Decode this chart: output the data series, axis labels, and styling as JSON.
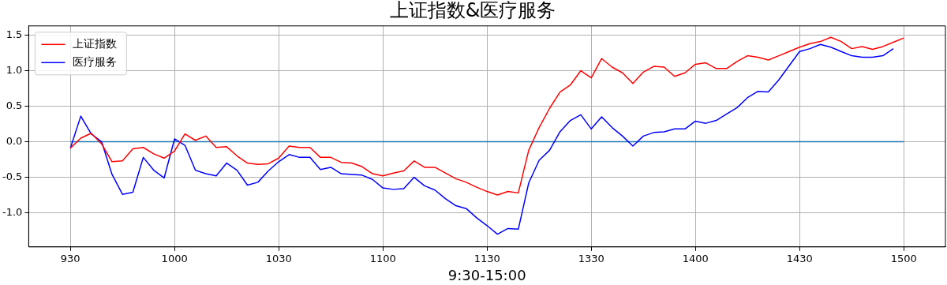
{
  "chart_data": {
    "type": "line",
    "title": "上证指数&医疗服务",
    "xlabel": "9:30-15:00",
    "categories": [
      "930",
      null,
      null,
      null,
      null,
      null,
      null,
      null,
      null,
      null,
      "1000",
      null,
      null,
      null,
      null,
      null,
      null,
      null,
      null,
      null,
      "1030",
      null,
      null,
      null,
      null,
      null,
      null,
      null,
      null,
      null,
      "1100",
      null,
      null,
      null,
      null,
      null,
      null,
      null,
      null,
      null,
      "1130",
      null,
      null,
      null,
      null,
      null,
      null,
      null,
      null,
      null,
      "1330",
      null,
      null,
      null,
      null,
      null,
      null,
      null,
      null,
      null,
      "1400",
      null,
      null,
      null,
      null,
      null,
      null,
      null,
      null,
      null,
      "1430",
      null,
      null,
      null,
      null,
      null,
      null,
      null,
      null,
      null,
      "1500"
    ],
    "ylim": [
      -1.48,
      1.63
    ],
    "yticks": [
      {
        "value": -1,
        "label": "-1.0"
      },
      {
        "value": -0.5,
        "label": "-0.5"
      },
      {
        "value": 0,
        "label": "0.0"
      },
      {
        "value": 0.5,
        "label": "0.5"
      },
      {
        "value": 1,
        "label": "1.0"
      },
      {
        "value": 1.5,
        "label": "1.5"
      }
    ],
    "grid": true,
    "legend": "top left",
    "line_style": "solid",
    "series": [
      {
        "name": "上证指数",
        "color": "#ff0000",
        "values": [
          -0.09,
          0.05,
          0.12,
          -0.03,
          -0.28,
          -0.27,
          -0.1,
          -0.08,
          -0.17,
          -0.23,
          -0.13,
          0.11,
          0.02,
          0.08,
          -0.08,
          -0.07,
          -0.2,
          -0.3,
          -0.32,
          -0.31,
          -0.23,
          -0.06,
          -0.08,
          -0.08,
          -0.22,
          -0.22,
          -0.29,
          -0.3,
          -0.35,
          -0.45,
          -0.48,
          -0.44,
          -0.41,
          -0.27,
          -0.36,
          -0.36,
          -0.44,
          -0.52,
          -0.57,
          -0.64,
          -0.7,
          -0.75,
          -0.7,
          -0.72,
          -0.12,
          0.2,
          0.47,
          0.7,
          0.8,
          1.0,
          0.9,
          1.17,
          1.05,
          0.97,
          0.82,
          0.98,
          1.06,
          1.05,
          0.92,
          0.97,
          1.09,
          1.11,
          1.03,
          1.03,
          1.13,
          1.21,
          1.19,
          1.15,
          1.21,
          1.27,
          1.33,
          1.38,
          1.41,
          1.47,
          1.41,
          1.31,
          1.34,
          1.3,
          1.34,
          1.4,
          1.46
        ]
      },
      {
        "name": "医疗服务",
        "color": "#0000ff",
        "values": [
          -0.09,
          0.36,
          0.11,
          0,
          -0.46,
          -0.74,
          -0.71,
          -0.22,
          -0.4,
          -0.51,
          0.04,
          -0.05,
          -0.4,
          -0.45,
          -0.48,
          -0.3,
          -0.4,
          -0.61,
          -0.57,
          -0.41,
          -0.28,
          -0.18,
          -0.22,
          -0.22,
          -0.39,
          -0.36,
          -0.45,
          -0.46,
          -0.47,
          -0.53,
          -0.65,
          -0.67,
          -0.66,
          -0.5,
          -0.62,
          -0.68,
          -0.8,
          -0.9,
          -0.94,
          -1.07,
          -1.18,
          -1.3,
          -1.22,
          -1.23,
          -0.58,
          -0.26,
          -0.12,
          0.14,
          0.3,
          0.38,
          0.18,
          0.35,
          0.2,
          0.08,
          -0.06,
          0.08,
          0.13,
          0.14,
          0.18,
          0.18,
          0.29,
          0.26,
          0.3,
          0.39,
          0.48,
          0.62,
          0.71,
          0.7,
          0.87,
          1.07,
          1.27,
          1.31,
          1.37,
          1.33,
          1.27,
          1.21,
          1.19,
          1.19,
          1.21,
          1.31,
          null
        ]
      },
      {
        "color": "#1f77b4",
        "values": [
          0,
          0,
          0,
          0,
          0,
          0,
          0,
          0,
          0,
          0,
          0,
          0,
          0,
          0,
          0,
          0,
          0,
          0,
          0,
          0,
          0,
          0,
          0,
          0,
          0,
          0,
          0,
          0,
          0,
          0,
          0,
          0,
          0,
          0,
          0,
          0,
          0,
          0,
          0,
          0,
          0,
          0,
          0,
          0,
          0,
          0,
          0,
          0,
          0,
          0,
          0,
          0,
          0,
          0,
          0,
          0,
          0,
          0,
          0,
          0,
          0,
          0,
          0,
          0,
          0,
          0,
          0,
          0,
          0,
          0,
          0,
          0,
          0,
          0,
          0,
          0,
          0,
          0,
          0,
          0,
          0
        ]
      }
    ]
  }
}
